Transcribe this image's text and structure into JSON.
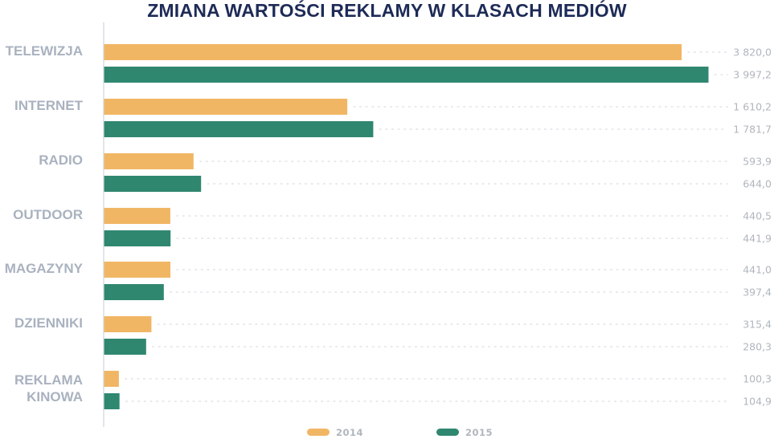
{
  "chart_data": {
    "type": "bar",
    "orientation": "horizontal",
    "title": "ZMIANA WARTOŚCI REKLAMY W KLASACH MEDIÓW",
    "categories": [
      [
        "TELEWIZJA"
      ],
      [
        "INTERNET"
      ],
      [
        "RADIO"
      ],
      [
        "OUTDOOR"
      ],
      [
        "MAGAZYNY"
      ],
      [
        "DZIENNIKI"
      ],
      [
        "REKLAMA",
        "KINOWA"
      ]
    ],
    "series": [
      {
        "name": "2014",
        "color": "#f1b664",
        "values": [
          3820.0,
          1610.2,
          593.9,
          440.5,
          441.0,
          315.4,
          100.3
        ],
        "labels": [
          "3 820,0",
          "1 610,2",
          "593,9",
          "440,5",
          "441,0",
          "315,4",
          "100,3"
        ]
      },
      {
        "name": "2015",
        "color": "#2f8770",
        "values": [
          3997.2,
          1781.7,
          644.0,
          441.9,
          397.4,
          280.3,
          104.9
        ],
        "labels": [
          "3 997,2",
          "1 781,7",
          "644,0",
          "441,9",
          "397,4",
          "280,3",
          "104,9"
        ]
      }
    ],
    "xlim": [
      0,
      4070
    ],
    "grid": "dotted-leaders",
    "legend": "bottom-center",
    "colors": {
      "title": "#1d2b57",
      "category_label": "#a9b2bf",
      "value_label": "#b0b6be",
      "axis": "#cfd4db",
      "leader": "#dfe3e8"
    }
  }
}
